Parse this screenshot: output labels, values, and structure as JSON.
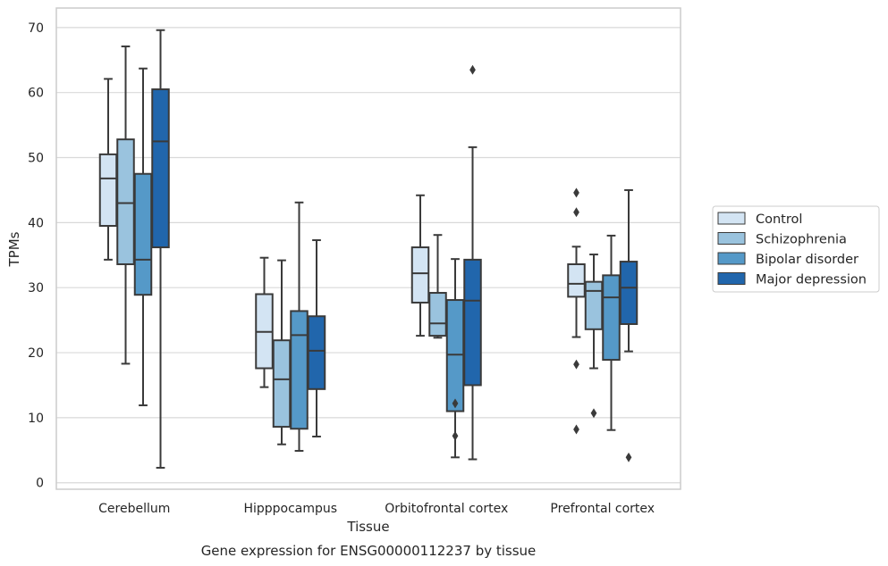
{
  "chart_data": {
    "type": "box",
    "caption": "Gene expression for ENSG00000112237 by tissue",
    "xlabel": "Tissue",
    "ylabel": "TPMs",
    "ylim": [
      -1,
      73
    ],
    "yticks": [
      0,
      10,
      20,
      30,
      40,
      50,
      60,
      70
    ],
    "grid": "horizontal",
    "legend_position": "right",
    "categories": [
      "Cerebellum",
      "Hipppocampus",
      "Orbitofrontal cortex",
      "Prefrontal cortex"
    ],
    "series": [
      {
        "name": "Control",
        "color": "#d3e4f3",
        "boxes": [
          {
            "whislo": 34.3,
            "q1": 39.5,
            "med": 46.8,
            "q3": 50.5,
            "whishi": 62.1,
            "fliers": []
          },
          {
            "whislo": 14.7,
            "q1": 17.6,
            "med": 23.2,
            "q3": 29.0,
            "whishi": 34.6,
            "fliers": []
          },
          {
            "whislo": 22.6,
            "q1": 27.7,
            "med": 32.2,
            "q3": 36.2,
            "whishi": 44.2,
            "fliers": []
          },
          {
            "whislo": 22.4,
            "q1": 28.6,
            "med": 30.6,
            "q3": 33.6,
            "whishi": 36.3,
            "fliers": [
              44.6,
              41.6,
              18.2,
              8.2
            ]
          }
        ]
      },
      {
        "name": "Schizophrenia",
        "color": "#9ac3de",
        "boxes": [
          {
            "whislo": 18.3,
            "q1": 33.6,
            "med": 43.0,
            "q3": 52.8,
            "whishi": 67.1,
            "fliers": []
          },
          {
            "whislo": 5.9,
            "q1": 8.6,
            "med": 15.9,
            "q3": 21.9,
            "whishi": 34.2,
            "fliers": []
          },
          {
            "whislo": 22.3,
            "q1": 22.6,
            "med": 24.5,
            "q3": 29.2,
            "whishi": 38.1,
            "fliers": []
          },
          {
            "whislo": 17.6,
            "q1": 23.6,
            "med": 29.5,
            "q3": 30.9,
            "whishi": 35.1,
            "fliers": [
              10.7
            ]
          }
        ]
      },
      {
        "name": "Bipolar disorder",
        "color": "#5599c8",
        "boxes": [
          {
            "whislo": 11.9,
            "q1": 28.9,
            "med": 34.3,
            "q3": 47.5,
            "whishi": 63.7,
            "fliers": []
          },
          {
            "whislo": 4.9,
            "q1": 8.3,
            "med": 22.7,
            "q3": 26.4,
            "whishi": 43.1,
            "fliers": []
          },
          {
            "whislo": 3.9,
            "q1": 11.0,
            "med": 19.7,
            "q3": 28.1,
            "whishi": 34.4,
            "fliers": [
              12.2,
              7.2
            ]
          },
          {
            "whislo": 8.1,
            "q1": 18.9,
            "med": 28.5,
            "q3": 31.9,
            "whishi": 38.0,
            "fliers": []
          }
        ]
      },
      {
        "name": "Major depression",
        "color": "#2166ac",
        "boxes": [
          {
            "whislo": 2.3,
            "q1": 36.2,
            "med": 52.5,
            "q3": 60.5,
            "whishi": 69.6,
            "fliers": []
          },
          {
            "whislo": 7.1,
            "q1": 14.4,
            "med": 20.3,
            "q3": 25.6,
            "whishi": 37.3,
            "fliers": []
          },
          {
            "whislo": 3.6,
            "q1": 15.0,
            "med": 28.0,
            "q3": 34.3,
            "whishi": 51.6,
            "fliers": [
              63.5
            ]
          },
          {
            "whislo": 20.2,
            "q1": 24.4,
            "med": 30.0,
            "q3": 34.0,
            "whishi": 45.0,
            "fliers": [
              3.9
            ]
          }
        ]
      }
    ]
  }
}
